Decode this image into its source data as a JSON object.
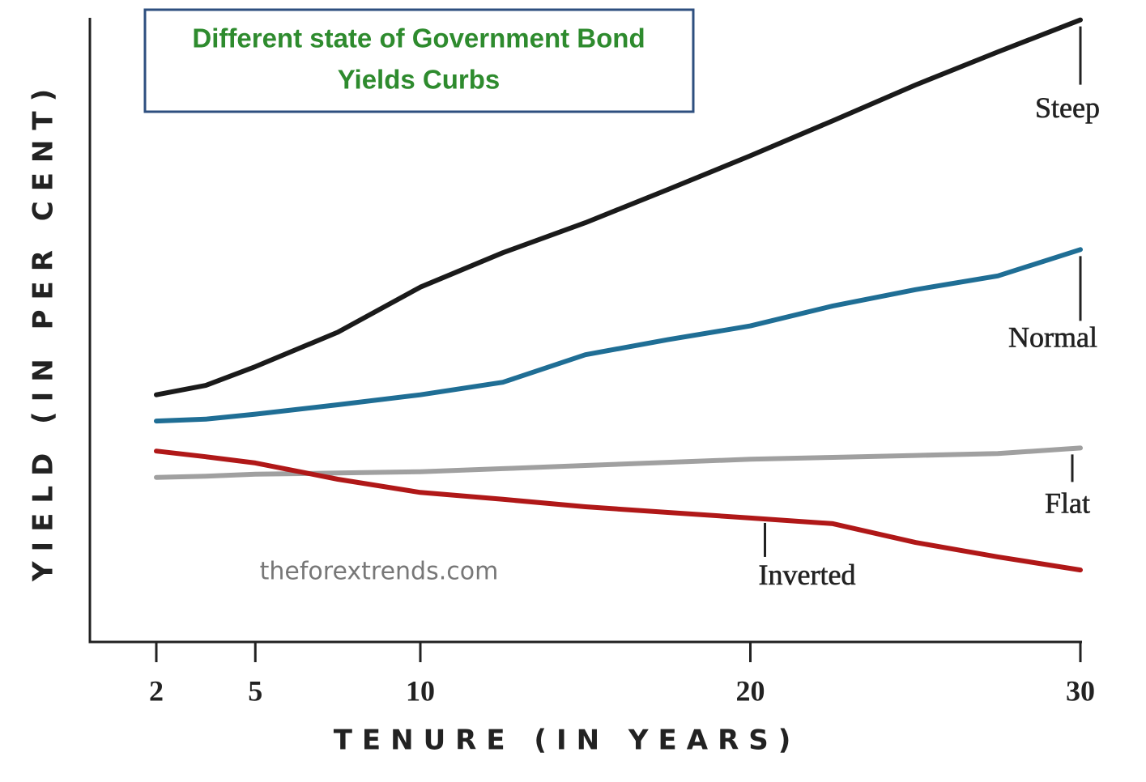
{
  "chart_data": {
    "type": "line",
    "title": [
      "Different state of  Government Bond",
      "Yields Curbs"
    ],
    "x_label": "TENURE (IN YEARS)",
    "y_label": "YIELD (IN PER CENT)",
    "watermark": "theforextrends.com",
    "x": [
      2,
      3.5,
      5,
      7.5,
      10,
      12.5,
      15,
      17.5,
      20,
      22.5,
      25,
      27.5,
      30
    ],
    "xlim": [
      0,
      30
    ],
    "xticks": [
      2,
      5,
      10,
      20,
      30
    ],
    "ylim": [
      0,
      100
    ],
    "series": [
      {
        "name": "Steep",
        "color": "#1a1a1a",
        "values": [
          39.5,
          41,
          44,
          49.5,
          56.7,
          62.2,
          67,
          72.3,
          77.7,
          83.3,
          89,
          94.3,
          99.4
        ]
      },
      {
        "name": "Normal",
        "color": "#1f6e95",
        "values": [
          35.3,
          35.6,
          36.4,
          37.9,
          39.5,
          41.5,
          45.9,
          48.3,
          50.5,
          53.7,
          56.3,
          58.5,
          62.7
        ]
      },
      {
        "name": "Flat",
        "color": "#a0a0a0",
        "values": [
          26.3,
          26.5,
          26.8,
          27,
          27.2,
          27.7,
          28.2,
          28.7,
          29.2,
          29.5,
          29.8,
          30.1,
          31
        ]
      },
      {
        "name": "Inverted",
        "color": "#b01818",
        "values": [
          30.5,
          29.6,
          28.6,
          26,
          23.9,
          22.8,
          21.6,
          20.7,
          19.8,
          18.9,
          15.9,
          13.6,
          11.5
        ]
      }
    ]
  }
}
